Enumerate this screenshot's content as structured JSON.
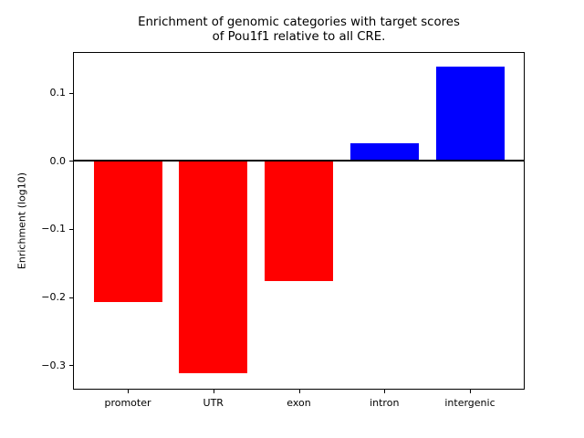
{
  "chart_data": {
    "type": "bar",
    "title": "Enrichment of genomic categories with target scores\nof Pou1f1 relative to all CRE.",
    "xlabel": "",
    "ylabel": "Enrichment (log10)",
    "categories": [
      "promoter",
      "UTR",
      "exon",
      "intron",
      "intergenic"
    ],
    "values": [
      -0.207,
      -0.312,
      -0.177,
      0.026,
      0.138
    ],
    "bar_colors": [
      "#ff0000",
      "#ff0000",
      "#ff0000",
      "#0000ff",
      "#0000ff"
    ],
    "negative_color": "#ff0000",
    "positive_color": "#0000ff",
    "bar_width": 0.8,
    "xlim": [
      -0.64,
      4.64
    ],
    "ylim": [
      -0.336,
      0.16
    ],
    "yticks": [
      {
        "value": 0.1,
        "label": "0.1"
      },
      {
        "value": 0.0,
        "label": "0.0"
      },
      {
        "value": -0.1,
        "label": "−0.1"
      },
      {
        "value": -0.2,
        "label": "−0.2"
      },
      {
        "value": -0.3,
        "label": "−0.3"
      }
    ],
    "zero_line": true,
    "grid": false,
    "legend": null
  }
}
